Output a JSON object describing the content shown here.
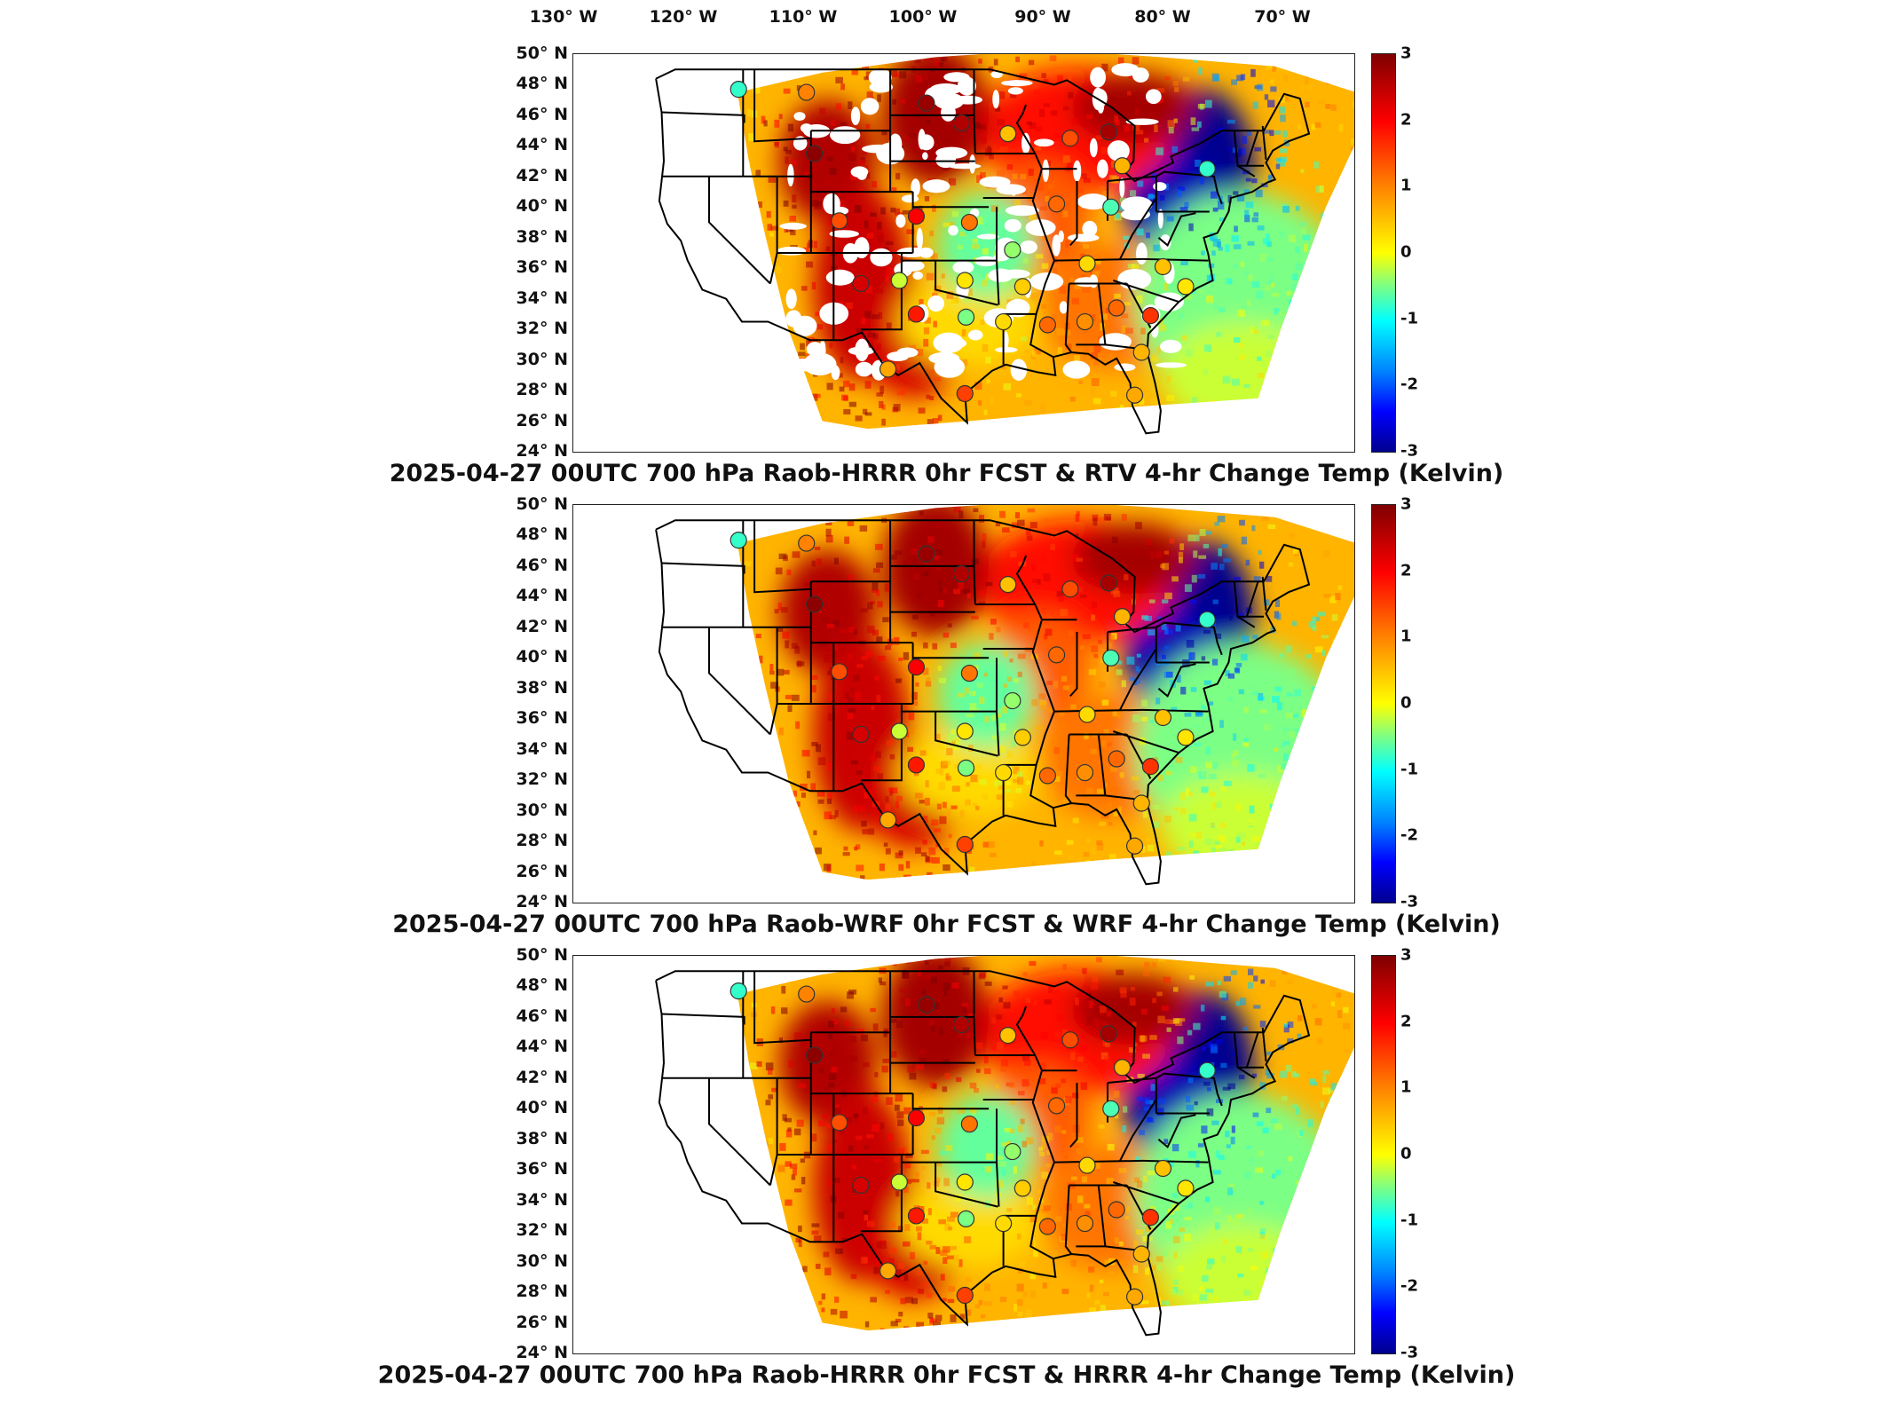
{
  "longitude_labels": [
    "130° W",
    "120° W",
    "110° W",
    "100° W",
    "90° W",
    "80° W",
    "70° W"
  ],
  "latitude_labels": [
    "50° N",
    "48° N",
    "46° N",
    "44° N",
    "42° N",
    "40° N",
    "38° N",
    "36° N",
    "34° N",
    "32° N",
    "30° N",
    "28° N",
    "26° N",
    "24° N"
  ],
  "colorbar": {
    "ticks": [
      "3",
      "2",
      "1",
      "0",
      "-1",
      "-2",
      "-3"
    ],
    "range": [
      -3,
      3
    ],
    "colormap": "jet",
    "colors": [
      "#7f0000",
      "#ff0000",
      "#ff8000",
      "#ffff00",
      "#80ff80",
      "#00ffff",
      "#0080ff",
      "#0000ff",
      "#00008f"
    ]
  },
  "panels": [
    {
      "caption": "2025-04-27 00UTC 700 hPa Raob-HRRR 0hr FCST & RTV 4-hr Change Temp (Kelvin)",
      "variant": "rtv"
    },
    {
      "caption": "2025-04-27 00UTC 700 hPa Raob-WRF 0hr FCST & WRF 4-hr Change Temp (Kelvin)",
      "variant": "wrf"
    },
    {
      "caption": "2025-04-27 00UTC 700 hPa Raob-HRRR 0hr FCST & HRRR 4-hr Change Temp (Kelvin)",
      "variant": "hrrr"
    }
  ],
  "raob_stations": [
    {
      "lon": -117.4,
      "lat": 47.7,
      "value": -0.8
    },
    {
      "lon": -111.4,
      "lat": 47.5,
      "value": 1.0
    },
    {
      "lon": -100.8,
      "lat": 46.8,
      "value": 2.8
    },
    {
      "lon": -97.7,
      "lat": 45.5,
      "value": 2.6
    },
    {
      "lon": -110.7,
      "lat": 43.5,
      "value": 2.9
    },
    {
      "lon": -93.6,
      "lat": 44.8,
      "value": 0.5
    },
    {
      "lon": -88.1,
      "lat": 44.5,
      "value": 1.4
    },
    {
      "lon": -84.7,
      "lat": 44.9,
      "value": 2.7
    },
    {
      "lon": -83.5,
      "lat": 42.7,
      "value": 0.6
    },
    {
      "lon": -76.0,
      "lat": 42.5,
      "value": -0.8
    },
    {
      "lon": -89.3,
      "lat": 40.2,
      "value": 1.2
    },
    {
      "lon": -84.5,
      "lat": 40.0,
      "value": -0.7
    },
    {
      "lon": -108.5,
      "lat": 39.1,
      "value": 1.4
    },
    {
      "lon": -101.7,
      "lat": 39.4,
      "value": 2.0
    },
    {
      "lon": -97.0,
      "lat": 39.0,
      "value": 1.1
    },
    {
      "lon": -93.2,
      "lat": 37.2,
      "value": -0.4
    },
    {
      "lon": -86.6,
      "lat": 36.3,
      "value": 0.3
    },
    {
      "lon": -79.9,
      "lat": 36.1,
      "value": 0.5
    },
    {
      "lon": -106.6,
      "lat": 35.0,
      "value": 2.3
    },
    {
      "lon": -103.2,
      "lat": 35.2,
      "value": -0.2
    },
    {
      "lon": -97.4,
      "lat": 35.2,
      "value": 0.2
    },
    {
      "lon": -92.3,
      "lat": 34.8,
      "value": 0.4
    },
    {
      "lon": -101.7,
      "lat": 33.0,
      "value": 1.8
    },
    {
      "lon": -97.3,
      "lat": 32.8,
      "value": -0.5
    },
    {
      "lon": -94.0,
      "lat": 32.5,
      "value": 0.3
    },
    {
      "lon": -90.1,
      "lat": 32.3,
      "value": 1.2
    },
    {
      "lon": -86.8,
      "lat": 32.5,
      "value": 0.9
    },
    {
      "lon": -84.0,
      "lat": 33.4,
      "value": 1.2
    },
    {
      "lon": -81.0,
      "lat": 32.9,
      "value": 1.6
    },
    {
      "lon": -77.9,
      "lat": 34.8,
      "value": 0.2
    },
    {
      "lon": -104.2,
      "lat": 29.4,
      "value": 0.7
    },
    {
      "lon": -97.4,
      "lat": 27.8,
      "value": 1.5
    },
    {
      "lon": -81.8,
      "lat": 30.5,
      "value": 0.6
    },
    {
      "lon": -82.4,
      "lat": 27.7,
      "value": 0.7
    }
  ]
}
